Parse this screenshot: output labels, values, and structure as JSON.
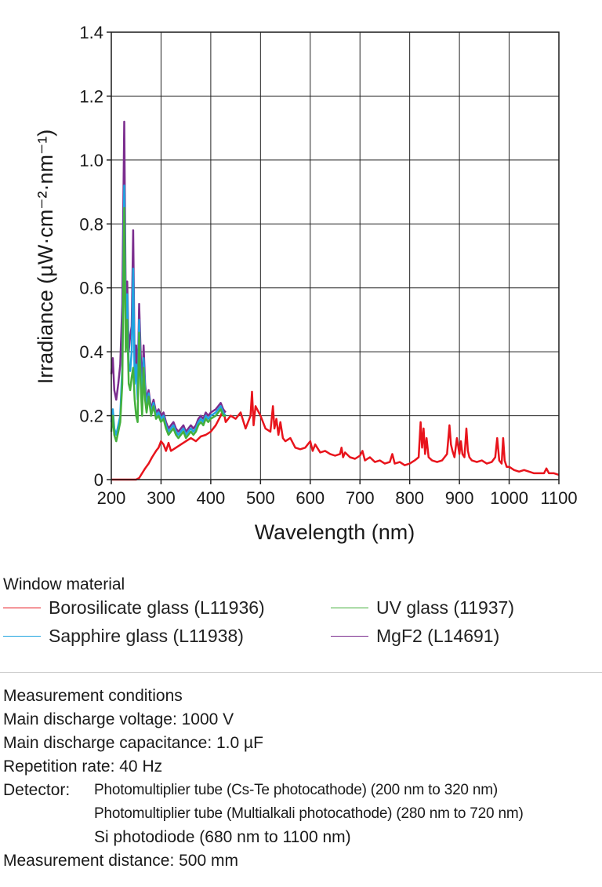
{
  "chart_data": {
    "type": "line",
    "title": "",
    "xlabel": "Wavelength (nm)",
    "ylabel": "Irradiance (µW·cm⁻²·nm⁻¹)",
    "xlim": [
      200,
      1100
    ],
    "ylim": [
      0,
      1.4
    ],
    "x_ticks": [
      200,
      300,
      400,
      500,
      600,
      700,
      800,
      900,
      1000,
      1100
    ],
    "x_tick_labels": [
      "200",
      "300",
      "400",
      "500",
      "600",
      "700",
      "800",
      "900",
      "1000",
      "1100"
    ],
    "y_ticks": [
      0,
      0.2,
      0.4,
      0.6,
      0.8,
      1.0,
      1.2,
      1.4
    ],
    "y_tick_labels": [
      "0",
      "0.2",
      "0.4",
      "0.6",
      "0.8",
      "1.0",
      "1.2",
      "1.4"
    ],
    "grid": true,
    "series": [
      {
        "name": "Borosilicate glass (L11936)",
        "color": "#e8141c",
        "x": [
          200,
          250,
          256,
          262,
          268,
          275,
          282,
          290,
          295,
          300,
          305,
          310,
          315,
          320,
          330,
          340,
          350,
          360,
          370,
          380,
          390,
          400,
          410,
          420,
          425,
          430,
          440,
          450,
          460,
          470,
          480,
          483,
          486,
          490,
          500,
          510,
          520,
          525,
          528,
          532,
          536,
          540,
          545,
          550,
          560,
          570,
          580,
          590,
          600,
          605,
          610,
          620,
          630,
          640,
          650,
          660,
          663,
          666,
          670,
          680,
          690,
          700,
          705,
          710,
          720,
          730,
          740,
          750,
          760,
          765,
          770,
          780,
          790,
          800,
          810,
          818,
          822,
          825,
          828,
          831,
          834,
          838,
          845,
          855,
          865,
          875,
          880,
          883,
          886,
          890,
          895,
          900,
          903,
          906,
          910,
          914,
          917,
          920,
          925,
          935,
          945,
          955,
          965,
          972,
          976,
          980,
          985,
          988,
          991,
          995,
          1000,
          1010,
          1020,
          1030,
          1040,
          1050,
          1060,
          1070,
          1075,
          1080,
          1090,
          1100
        ],
        "values": [
          0,
          0,
          0.005,
          0.02,
          0.035,
          0.05,
          0.07,
          0.09,
          0.1,
          0.12,
          0.11,
          0.09,
          0.115,
          0.09,
          0.1,
          0.11,
          0.12,
          0.13,
          0.12,
          0.135,
          0.14,
          0.15,
          0.17,
          0.2,
          0.22,
          0.18,
          0.2,
          0.19,
          0.21,
          0.16,
          0.2,
          0.275,
          0.17,
          0.23,
          0.2,
          0.16,
          0.15,
          0.23,
          0.16,
          0.19,
          0.14,
          0.18,
          0.13,
          0.12,
          0.13,
          0.1,
          0.095,
          0.1,
          0.12,
          0.09,
          0.11,
          0.085,
          0.09,
          0.08,
          0.075,
          0.08,
          0.1,
          0.07,
          0.085,
          0.07,
          0.065,
          0.075,
          0.09,
          0.06,
          0.07,
          0.055,
          0.06,
          0.05,
          0.055,
          0.08,
          0.05,
          0.055,
          0.045,
          0.05,
          0.06,
          0.07,
          0.18,
          0.1,
          0.16,
          0.08,
          0.13,
          0.07,
          0.06,
          0.055,
          0.06,
          0.08,
          0.17,
          0.11,
          0.09,
          0.07,
          0.13,
          0.08,
          0.12,
          0.08,
          0.07,
          0.16,
          0.09,
          0.07,
          0.06,
          0.055,
          0.06,
          0.05,
          0.055,
          0.07,
          0.13,
          0.06,
          0.05,
          0.13,
          0.06,
          0.04,
          0.04,
          0.03,
          0.025,
          0.03,
          0.025,
          0.02,
          0.02,
          0.02,
          0.035,
          0.02,
          0.02,
          0.015
        ]
      },
      {
        "name": "UV glass (11937)",
        "color": "#44b03c",
        "x": [
          200,
          203,
          206,
          210,
          214,
          218,
          222,
          226,
          229,
          232,
          235,
          238,
          241,
          244,
          247,
          250,
          253,
          256,
          259,
          262,
          265,
          268,
          271,
          275,
          280,
          285,
          290,
          295,
          300,
          305,
          310,
          315,
          320,
          325,
          330,
          335,
          340,
          345,
          350,
          355,
          360,
          365,
          370,
          375,
          380,
          385,
          390,
          395,
          400,
          410,
          415,
          420,
          425,
          430
        ],
        "values": [
          0.15,
          0.2,
          0.14,
          0.12,
          0.15,
          0.18,
          0.3,
          0.85,
          0.4,
          0.5,
          0.3,
          0.28,
          0.32,
          0.35,
          0.25,
          0.2,
          0.18,
          0.46,
          0.3,
          0.2,
          0.35,
          0.25,
          0.21,
          0.26,
          0.2,
          0.23,
          0.19,
          0.2,
          0.18,
          0.19,
          0.16,
          0.14,
          0.15,
          0.16,
          0.14,
          0.13,
          0.14,
          0.15,
          0.13,
          0.14,
          0.15,
          0.14,
          0.15,
          0.17,
          0.18,
          0.17,
          0.19,
          0.18,
          0.19,
          0.2,
          0.21,
          0.22,
          0.2,
          0.2
        ]
      },
      {
        "name": "Sapphire glass (L11938)",
        "color": "#1fa4e0",
        "x": [
          200,
          203,
          206,
          210,
          214,
          218,
          222,
          226,
          229,
          232,
          235,
          238,
          241,
          244,
          247,
          250,
          253,
          256,
          259,
          262,
          265,
          268,
          271,
          275,
          280,
          285,
          290,
          295,
          300,
          305,
          310,
          315,
          320,
          325,
          330,
          335,
          340,
          345,
          350,
          355,
          360,
          365,
          370,
          375,
          380,
          385,
          390,
          395,
          400,
          410,
          415,
          420,
          425,
          430
        ],
        "values": [
          0.18,
          0.22,
          0.16,
          0.14,
          0.17,
          0.2,
          0.35,
          0.92,
          0.48,
          0.58,
          0.36,
          0.34,
          0.4,
          0.66,
          0.3,
          0.36,
          0.25,
          0.5,
          0.34,
          0.24,
          0.38,
          0.28,
          0.23,
          0.27,
          0.21,
          0.24,
          0.2,
          0.21,
          0.19,
          0.2,
          0.17,
          0.15,
          0.16,
          0.17,
          0.15,
          0.14,
          0.15,
          0.16,
          0.14,
          0.15,
          0.16,
          0.15,
          0.16,
          0.18,
          0.19,
          0.18,
          0.2,
          0.19,
          0.2,
          0.21,
          0.22,
          0.23,
          0.21,
          0.2
        ]
      },
      {
        "name": "MgF2 (L14691)",
        "color": "#7b2d8e",
        "x": [
          200,
          203,
          206,
          210,
          214,
          218,
          222,
          226,
          229,
          232,
          235,
          238,
          241,
          244,
          247,
          250,
          253,
          256,
          259,
          262,
          265,
          268,
          271,
          275,
          280,
          285,
          290,
          295,
          300,
          305,
          310,
          315,
          320,
          325,
          330,
          335,
          340,
          345,
          350,
          355,
          360,
          365,
          370,
          375,
          380,
          385,
          390,
          395,
          400,
          410,
          415,
          420,
          425,
          430
        ],
        "values": [
          0.33,
          0.38,
          0.28,
          0.25,
          0.3,
          0.36,
          0.55,
          1.12,
          0.55,
          0.62,
          0.4,
          0.45,
          0.48,
          0.78,
          0.35,
          0.42,
          0.3,
          0.55,
          0.4,
          0.28,
          0.42,
          0.3,
          0.25,
          0.28,
          0.22,
          0.25,
          0.21,
          0.22,
          0.2,
          0.21,
          0.18,
          0.16,
          0.17,
          0.18,
          0.16,
          0.15,
          0.16,
          0.17,
          0.15,
          0.16,
          0.17,
          0.16,
          0.17,
          0.19,
          0.2,
          0.19,
          0.21,
          0.2,
          0.21,
          0.22,
          0.23,
          0.24,
          0.22,
          0.21
        ]
      }
    ]
  },
  "legend": {
    "title": "Window material",
    "items": [
      {
        "label": "Borosilicate glass (L11936)",
        "color": "#e8141c"
      },
      {
        "label": "UV glass (11937)",
        "color": "#44b03c"
      },
      {
        "label": "Sapphire glass (L11938)",
        "color": "#1fa4e0"
      },
      {
        "label": "MgF2 (L14691)",
        "color": "#7b2d8e"
      }
    ]
  },
  "conditions": {
    "title": "Measurement conditions",
    "voltage": "Main discharge voltage: 1000 V",
    "capacitance": "Main discharge capacitance: 1.0 µF",
    "repetition": "Repetition rate: 40 Hz",
    "detector_label": "Detector:",
    "detector_lines": [
      "Photomultiplier tube (Cs-Te photocathode) (200 nm to 320 nm)",
      "Photomultiplier tube (Multialkali photocathode) (280 nm to 720 nm)",
      "Si photodiode (680 nm to 1100 nm)"
    ],
    "distance": "Measurement distance: 500 mm"
  }
}
